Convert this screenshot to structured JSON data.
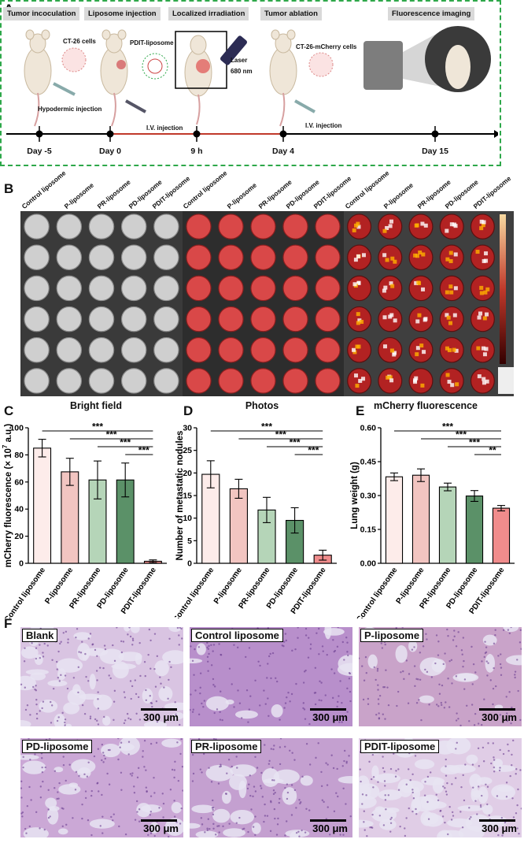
{
  "panel_letters": {
    "a": "A",
    "b": "B",
    "c": "C",
    "d": "D",
    "e": "E",
    "f": "F"
  },
  "panelA": {
    "stages": [
      "Tumor incoculation",
      "Liposome injection",
      "Localized irradiation",
      "Tumor ablation",
      "Fluorescence imaging"
    ],
    "labels": {
      "ct26": "CT-26 cells",
      "pdit_liposome": "PDIT-liposome",
      "laser": "Laser",
      "nm": "680 nm",
      "ct26_mcherry": "CT-26-mCherry cells",
      "hypodermic": "Hypodermic injection",
      "iv1": "I.V.  injection",
      "iv2": "I.V.  injection"
    },
    "days": [
      "Day -5",
      "Day 0",
      "9 h",
      "Day 4",
      "Day 15"
    ],
    "colors": {
      "border": "#2ea84a",
      "timeline": "#000000",
      "highlight": "#c0392b"
    }
  },
  "panelB": {
    "groups": [
      "Control liposome",
      "P-liposome",
      "PR-liposome",
      "PD-liposome",
      "PDIT-liposome"
    ],
    "subtitles": [
      "Bright field",
      "Photos",
      "mCherry fluorescence"
    ]
  },
  "chart_data": [
    {
      "type": "bar",
      "categories": [
        "Control liposome",
        "P-liposome",
        "PR-liposome",
        "PD-liposome",
        "PDIT-liposome"
      ],
      "values": [
        85,
        67.5,
        61.5,
        61.5,
        1.5
      ],
      "errors": [
        6.5,
        10,
        14,
        12.5,
        1
      ],
      "ylabel": "mCherry fluorescence (× 10",
      "ylabel_exp": "7",
      "ylabel_unit": " a.u.)",
      "ylim": [
        0,
        100
      ],
      "yticks": [
        "0",
        "20",
        "40",
        "60",
        "80",
        "100"
      ],
      "significance": [
        "***",
        "***",
        "***",
        "***"
      ],
      "colors": [
        "#fdecea",
        "#f2c5c1",
        "#b5d5b8",
        "#5b9168",
        "#f08c8c"
      ]
    },
    {
      "type": "bar",
      "categories": [
        "Control liposome",
        "P-liposome",
        "PR-liposome",
        "PD-liposome",
        "PDIT-liposome"
      ],
      "values": [
        19.7,
        16.5,
        11.8,
        9.5,
        1.8
      ],
      "errors": [
        3,
        2.1,
        2.8,
        2.8,
        1.1
      ],
      "ylabel": "Number of metastatic nodules",
      "ylim": [
        0,
        30
      ],
      "yticks": [
        "0",
        "5",
        "10",
        "15",
        "20",
        "25",
        "30"
      ],
      "significance": [
        "***",
        "***",
        "***",
        "***"
      ],
      "colors": [
        "#fdecea",
        "#f2c5c1",
        "#b5d5b8",
        "#5b9168",
        "#f08c8c"
      ]
    },
    {
      "type": "bar",
      "categories": [
        "Control liposome",
        "P-liposome",
        "PR-liposome",
        "PD-liposome",
        "PDIT-liposome"
      ],
      "values": [
        0.383,
        0.39,
        0.338,
        0.298,
        0.244
      ],
      "errors": [
        0.017,
        0.028,
        0.017,
        0.024,
        0.012
      ],
      "ylabel": "Lung weight (g)",
      "ylim": [
        0,
        0.6
      ],
      "yticks": [
        "0.00",
        "0.15",
        "0.30",
        "0.45",
        "0.60"
      ],
      "significance": [
        "***",
        "***",
        "***",
        "**"
      ],
      "colors": [
        "#fdecea",
        "#f2c5c1",
        "#b5d5b8",
        "#5b9168",
        "#f08c8c"
      ]
    }
  ],
  "panelF": {
    "panels": [
      "Blank",
      "Control liposome",
      "P-liposome",
      "PD-liposome",
      "PR-liposome",
      "PDIT-liposome"
    ],
    "scale": "300 μm"
  }
}
